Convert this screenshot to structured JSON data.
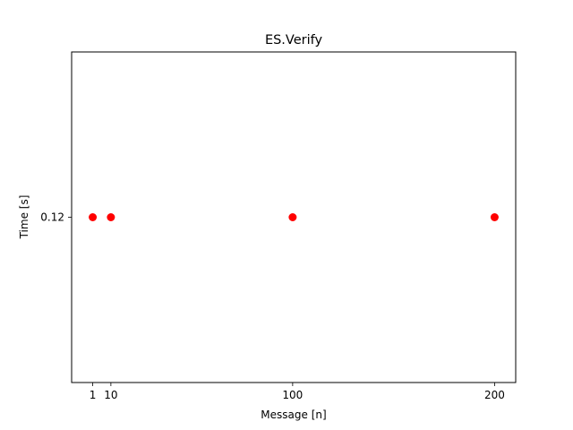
{
  "chart_data": {
    "type": "scatter",
    "title": "ES.Verify",
    "xlabel": "Message [n]",
    "ylabel": "Time [s]",
    "x": [
      1,
      10,
      100,
      200
    ],
    "y": [
      0.12,
      0.12,
      0.12,
      0.12
    ],
    "xticks": [
      1,
      10,
      100,
      200
    ],
    "xtick_labels": [
      "1",
      "10",
      "100",
      "200"
    ],
    "yticks": [
      0.12
    ],
    "ytick_labels": [
      "0.12"
    ],
    "xlim": [
      -9.45,
      210.45
    ],
    "ylim": [
      0.1,
      0.14
    ],
    "grid": false,
    "marker_color": "#ff0000"
  }
}
